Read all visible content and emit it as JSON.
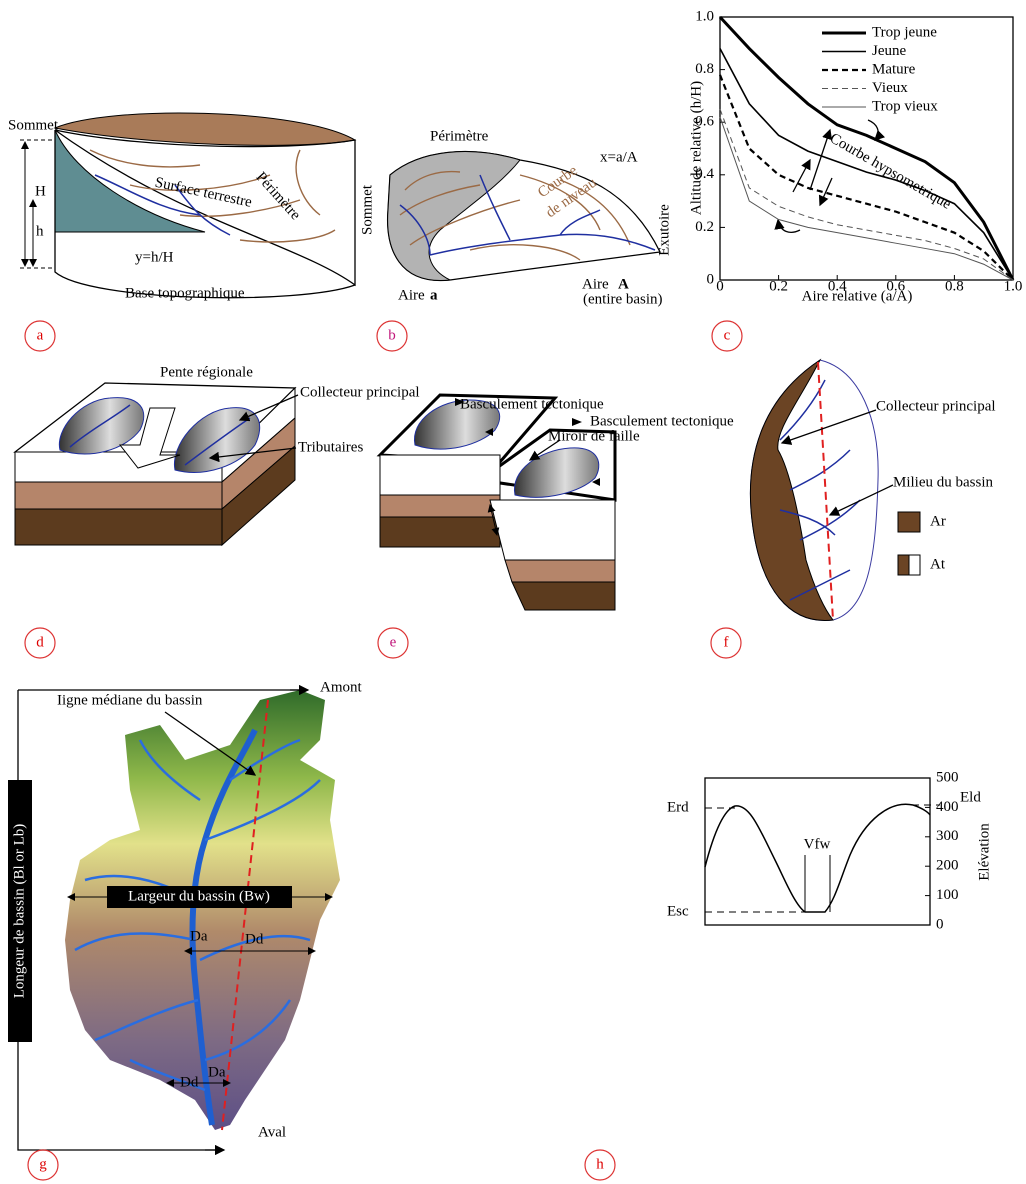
{
  "panel_a": {
    "letter": "a",
    "summit": "Sommet",
    "H": "H",
    "h": "h",
    "surface": "Surface terrestre",
    "perimeter": "Périmètre",
    "ratio": "y=h/H",
    "base": "Base topographique"
  },
  "panel_b": {
    "letter": "b",
    "perimeter": "Périmètre",
    "ratio": "x=a/A",
    "contour_1": "Courbe",
    "contour_2": "de niveau",
    "summit": "Sommet",
    "outlet": "Exutoire",
    "area_a": "Aire",
    "area_a_symbol": "a",
    "area_A": "Aire",
    "area_A_symbol": "A",
    "area_A_note": "(entire basin)"
  },
  "panel_c": {
    "letter": "c",
    "type": "line",
    "xlabel": "Aire relative (a/A)",
    "ylabel": "Altitude relative (h/H)",
    "annotation": "Courbe hypsometrique",
    "x": [
      0,
      0.1,
      0.2,
      0.3,
      0.4,
      0.5,
      0.6,
      0.7,
      0.8,
      0.9,
      1
    ],
    "xlim": [
      0,
      1
    ],
    "ylim": [
      0,
      1
    ],
    "xticks": [
      0,
      0.2,
      0.4,
      0.6,
      0.8,
      {
        "value": 1,
        "label": "1.0"
      }
    ],
    "yticks": [
      0,
      0.2,
      0.4,
      0.6,
      0.8,
      {
        "value": 1,
        "label": "1.0"
      }
    ],
    "series": [
      {
        "name": "Trop jeune",
        "color": "#000000",
        "dashed": false,
        "values": [
          1.0,
          0.88,
          0.77,
          0.67,
          0.59,
          0.55,
          0.5,
          0.45,
          0.37,
          0.22,
          0
        ]
      },
      {
        "name": "Jeune",
        "color": "#000000",
        "dashed": false,
        "values": [
          0.88,
          0.67,
          0.55,
          0.49,
          0.45,
          0.41,
          0.38,
          0.34,
          0.29,
          0.18,
          0
        ]
      },
      {
        "name": "Mature",
        "color": "#000000",
        "dashed": true,
        "values": [
          0.78,
          0.5,
          0.4,
          0.35,
          0.32,
          0.29,
          0.26,
          0.22,
          0.18,
          0.11,
          0
        ]
      },
      {
        "name": "Vieux",
        "color": "#555555",
        "dashed": true,
        "values": [
          0.65,
          0.35,
          0.28,
          0.24,
          0.21,
          0.19,
          0.17,
          0.15,
          0.12,
          0.08,
          0
        ]
      },
      {
        "name": "Trop vieux",
        "color": "#555555",
        "dashed": false,
        "values": [
          0.62,
          0.3,
          0.23,
          0.2,
          0.18,
          0.16,
          0.14,
          0.12,
          0.1,
          0.06,
          0
        ]
      }
    ]
  },
  "panel_d": {
    "letter": "d",
    "slope": "Pente régionale",
    "main_channel": "Collecteur principal",
    "tributaries": "Tributaires"
  },
  "panel_e": {
    "letter": "e",
    "tilt_1": "Basculement tectonique",
    "fault": "Miroir de faille",
    "tilt_2": "Basculement tectonique"
  },
  "panel_f": {
    "letter": "f",
    "main_channel": "Collecteur principal",
    "midline": "Milieu du bassin",
    "legend_ar": "Ar",
    "legend_at": "At"
  },
  "panel_g": {
    "letter": "g",
    "upstream": "Amont",
    "midline": "Iigne médiane du bassin",
    "length": "Longeur de bassin (Bl or Lb)",
    "width": "Largeur du bassin (Bw)",
    "da_1": "Da",
    "dd_1": "Dd",
    "dd_2": "Dd",
    "da_2": "Da",
    "downstream": "Aval"
  },
  "panel_h": {
    "letter": "h",
    "ylabel": "Elévation",
    "ylim": [
      0,
      500
    ],
    "yticks": [
      0,
      100,
      200,
      300,
      400,
      500
    ],
    "eld": "Eld",
    "erd": "Erd",
    "vfw": "Vfw",
    "esc": "Esc"
  }
}
